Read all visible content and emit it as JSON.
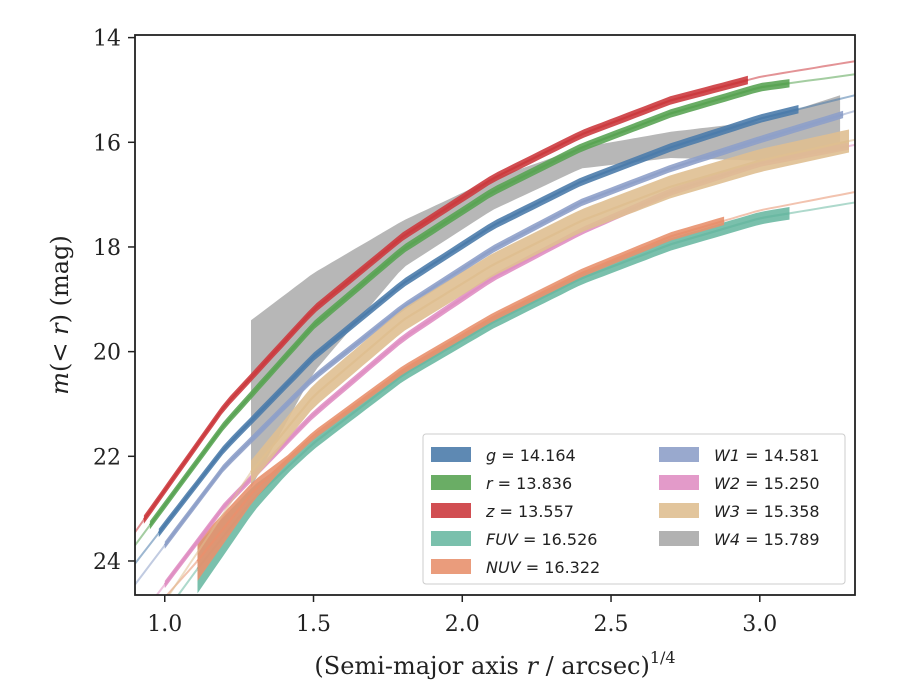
{
  "chart_data": {
    "type": "area",
    "xlabel": "(Semi-major axis r / arcsec)^1/4",
    "ylabel": "m(< r) (mag)",
    "xlim": [
      0.9,
      3.32
    ],
    "ylim": [
      24.65,
      13.95
    ],
    "y_inverted": true,
    "xticks": [
      "1.0",
      "1.5",
      "2.0",
      "2.5",
      "3.0"
    ],
    "xtick_values": [
      1.0,
      1.5,
      2.0,
      2.5,
      3.0
    ],
    "yticks": [
      "14",
      "16",
      "18",
      "20",
      "22",
      "24"
    ],
    "ytick_values": [
      14,
      16,
      18,
      20,
      22,
      24
    ],
    "grid": false,
    "legend_position": "lower-right",
    "series": [
      {
        "name": "g",
        "label": "g = 14.164",
        "color": "#4c7cab",
        "x0": 0.9,
        "x_fit_start": 0.98,
        "x_data_end": 3.13,
        "x": [
          0.9,
          1.2,
          1.5,
          1.8,
          2.1,
          2.4,
          2.7,
          3.0,
          3.32
        ],
        "y": [
          24.05,
          21.85,
          20.1,
          18.7,
          17.6,
          16.75,
          16.1,
          15.55,
          15.1
        ],
        "band_halfwidth": 0.08
      },
      {
        "name": "r",
        "label": "r = 13.836",
        "color": "#5aa454",
        "x0": 0.9,
        "x_fit_start": 0.95,
        "x_data_end": 3.1,
        "x": [
          0.9,
          1.2,
          1.5,
          1.8,
          2.1,
          2.4,
          2.7,
          3.0,
          3.32
        ],
        "y": [
          23.7,
          21.4,
          19.5,
          18.05,
          16.95,
          16.1,
          15.45,
          14.95,
          14.7
        ],
        "band_halfwidth": 0.08
      },
      {
        "name": "z",
        "label": "z = 13.557",
        "color": "#cc3b3f",
        "x0": 0.9,
        "x_fit_start": 0.93,
        "x_data_end": 2.96,
        "x": [
          0.9,
          1.2,
          1.5,
          1.8,
          2.1,
          2.4,
          2.7,
          3.0,
          3.32
        ],
        "y": [
          23.45,
          21.05,
          19.2,
          17.8,
          16.7,
          15.85,
          15.2,
          14.75,
          14.45
        ],
        "band_halfwidth": 0.08
      },
      {
        "name": "FUV",
        "label": "FUV = 16.526",
        "color": "#6bb9a3",
        "x0": 1.0,
        "x_fit_start": 1.11,
        "x_data_end": 3.1,
        "x": [
          1.0,
          1.11,
          1.3,
          1.5,
          1.8,
          2.1,
          2.4,
          2.7,
          3.0,
          3.32
        ],
        "y": [
          25.0,
          24.15,
          22.8,
          21.75,
          20.45,
          19.45,
          18.6,
          17.95,
          17.45,
          17.15
        ],
        "band_halfwidth": 0.12,
        "band_start_extra": 0.35
      },
      {
        "name": "NUV",
        "label": "NUV = 16.322",
        "color": "#e8916e",
        "x0": 1.0,
        "x_fit_start": 1.11,
        "x_data_end": 2.88,
        "x": [
          1.0,
          1.11,
          1.3,
          1.5,
          1.8,
          2.1,
          2.4,
          2.7,
          3.0,
          3.32
        ],
        "y": [
          24.7,
          24.0,
          22.65,
          21.6,
          20.35,
          19.35,
          18.5,
          17.8,
          17.3,
          16.95
        ],
        "band_halfwidth": 0.08,
        "band_start_extra": 0.3
      },
      {
        "name": "W1",
        "label": "W1 = 14.581",
        "color": "#8ea0c9",
        "x0": 0.9,
        "x_fit_start": 1.0,
        "x_data_end": 3.28,
        "x": [
          0.9,
          1.2,
          1.5,
          1.8,
          2.1,
          2.4,
          2.7,
          3.0,
          3.32
        ],
        "y": [
          24.45,
          22.2,
          20.5,
          19.15,
          18.05,
          17.15,
          16.5,
          15.95,
          15.4
        ],
        "band_halfwidth": 0.07
      },
      {
        "name": "W2",
        "label": "W2 = 15.250",
        "color": "#e08fc3",
        "x0": 0.9,
        "x_fit_start": 1.0,
        "x_data_end": 3.3,
        "x": [
          0.9,
          1.2,
          1.5,
          1.8,
          2.1,
          2.4,
          2.7,
          3.0,
          3.32
        ],
        "y": [
          25.2,
          22.95,
          21.2,
          19.75,
          18.6,
          17.7,
          16.95,
          16.4,
          16.05
        ],
        "band_halfwidth": 0.07
      },
      {
        "name": "W3",
        "label": "W3 = 15.358",
        "color": "#dfbf91",
        "x0": 0.95,
        "x_fit_start": 1.29,
        "x_data_end": 3.3,
        "x": [
          0.95,
          1.29,
          1.5,
          1.8,
          2.1,
          2.4,
          2.7,
          3.0,
          3.32
        ],
        "y": [
          25.2,
          22.3,
          20.85,
          19.4,
          18.35,
          17.5,
          16.85,
          16.35,
          15.95
        ],
        "band_halfwidth": 0.22
      },
      {
        "name": "W4",
        "label": "W4 = 15.789",
        "color": "#aaaaaa",
        "x0": 1.29,
        "x_fit_start": 1.29,
        "x_data_end": 3.27,
        "x": [
          1.29,
          1.5,
          1.8,
          2.1,
          2.4,
          2.7,
          3.0,
          3.27
        ],
        "y_upper": [
          19.4,
          18.5,
          17.5,
          16.7,
          16.1,
          15.8,
          15.6,
          15.1
        ],
        "y_lower": [
          22.6,
          20.4,
          18.4,
          17.3,
          16.5,
          16.3,
          16.35,
          16.15
        ]
      }
    ]
  }
}
